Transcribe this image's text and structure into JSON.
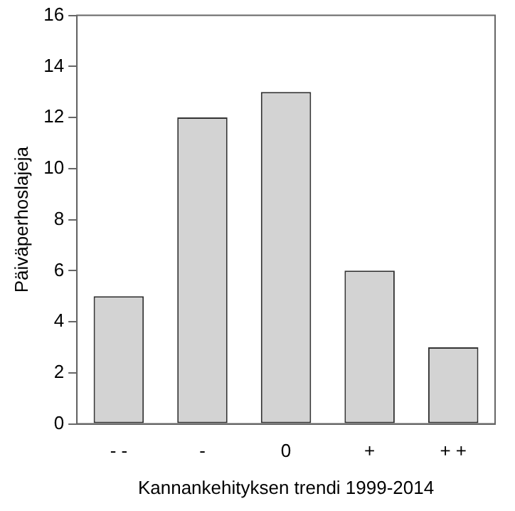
{
  "chart_data": {
    "type": "bar",
    "xlabel": "Kannankehityksen trendi 1999-2014",
    "ylabel": "Päiväperhoslajeja",
    "categories": [
      "- -",
      "-",
      "0",
      "+",
      "+ +"
    ],
    "values": [
      5,
      12,
      13,
      6,
      3
    ],
    "color": "#d3d3d3",
    "ylim": [
      0,
      16
    ],
    "yticks": [
      0,
      2,
      4,
      6,
      8,
      10,
      12,
      14,
      16
    ],
    "grid": false,
    "legend": false
  }
}
